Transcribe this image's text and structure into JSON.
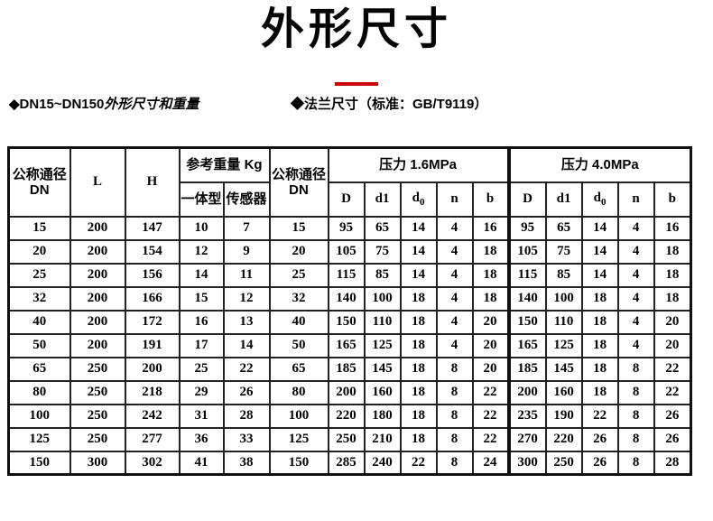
{
  "page": {
    "title": "外形尺寸",
    "accent_color": "#cc0000"
  },
  "bullets": {
    "left_prefix": "◆DN15~DN150",
    "left_emphasis": "外形尺寸和重量",
    "right": "◆法兰尺寸（标准：GB/T9119）"
  },
  "table": {
    "headers": {
      "nominal_diameter": "公称通径",
      "nominal_diameter_sub": "DN",
      "length": "L",
      "height": "H",
      "ref_weight": "参考重量 Kg",
      "integrated": "一体型",
      "sensor": "传感器",
      "pressure_16": "压力 1.6MPa",
      "pressure_40": "压力 4.0MPa",
      "d": "D",
      "d1": "d1",
      "d0_base": "d",
      "d0_sub": "0",
      "n": "n",
      "b": "b"
    },
    "rows": [
      {
        "dn": "15",
        "l": "200",
        "h": "147",
        "weight_integrated": "10",
        "weight_sensor": "7",
        "dn2": "15",
        "p16": [
          "95",
          "65",
          "14",
          "4",
          "16"
        ],
        "p40": [
          "95",
          "65",
          "14",
          "4",
          "16"
        ]
      },
      {
        "dn": "20",
        "l": "200",
        "h": "154",
        "weight_integrated": "12",
        "weight_sensor": "9",
        "dn2": "20",
        "p16": [
          "105",
          "75",
          "14",
          "4",
          "18"
        ],
        "p40": [
          "105",
          "75",
          "14",
          "4",
          "18"
        ]
      },
      {
        "dn": "25",
        "l": "200",
        "h": "156",
        "weight_integrated": "14",
        "weight_sensor": "11",
        "dn2": "25",
        "p16": [
          "115",
          "85",
          "14",
          "4",
          "18"
        ],
        "p40": [
          "115",
          "85",
          "14",
          "4",
          "18"
        ]
      },
      {
        "dn": "32",
        "l": "200",
        "h": "166",
        "weight_integrated": "15",
        "weight_sensor": "12",
        "dn2": "32",
        "p16": [
          "140",
          "100",
          "18",
          "4",
          "18"
        ],
        "p40": [
          "140",
          "100",
          "18",
          "4",
          "18"
        ]
      },
      {
        "dn": "40",
        "l": "200",
        "h": "172",
        "weight_integrated": "16",
        "weight_sensor": "13",
        "dn2": "40",
        "p16": [
          "150",
          "110",
          "18",
          "4",
          "20"
        ],
        "p40": [
          "150",
          "110",
          "18",
          "4",
          "20"
        ]
      },
      {
        "dn": "50",
        "l": "200",
        "h": "191",
        "weight_integrated": "17",
        "weight_sensor": "14",
        "dn2": "50",
        "p16": [
          "165",
          "125",
          "18",
          "4",
          "20"
        ],
        "p40": [
          "165",
          "125",
          "18",
          "4",
          "20"
        ]
      },
      {
        "dn": "65",
        "l": "250",
        "h": "200",
        "weight_integrated": "25",
        "weight_sensor": "22",
        "dn2": "65",
        "p16": [
          "185",
          "145",
          "18",
          "8",
          "20"
        ],
        "p40": [
          "185",
          "145",
          "18",
          "8",
          "22"
        ]
      },
      {
        "dn": "80",
        "l": "250",
        "h": "218",
        "weight_integrated": "29",
        "weight_sensor": "26",
        "dn2": "80",
        "p16": [
          "200",
          "160",
          "18",
          "8",
          "22"
        ],
        "p40": [
          "200",
          "160",
          "18",
          "8",
          "22"
        ]
      },
      {
        "dn": "100",
        "l": "250",
        "h": "242",
        "weight_integrated": "31",
        "weight_sensor": "28",
        "dn2": "100",
        "p16": [
          "220",
          "180",
          "18",
          "8",
          "22"
        ],
        "p40": [
          "235",
          "190",
          "22",
          "8",
          "26"
        ]
      },
      {
        "dn": "125",
        "l": "250",
        "h": "277",
        "weight_integrated": "36",
        "weight_sensor": "33",
        "dn2": "125",
        "p16": [
          "250",
          "210",
          "18",
          "8",
          "22"
        ],
        "p40": [
          "270",
          "220",
          "26",
          "8",
          "26"
        ]
      },
      {
        "dn": "150",
        "l": "300",
        "h": "302",
        "weight_integrated": "41",
        "weight_sensor": "38",
        "dn2": "150",
        "p16": [
          "285",
          "240",
          "22",
          "8",
          "24"
        ],
        "p40": [
          "300",
          "250",
          "26",
          "8",
          "28"
        ]
      }
    ]
  }
}
